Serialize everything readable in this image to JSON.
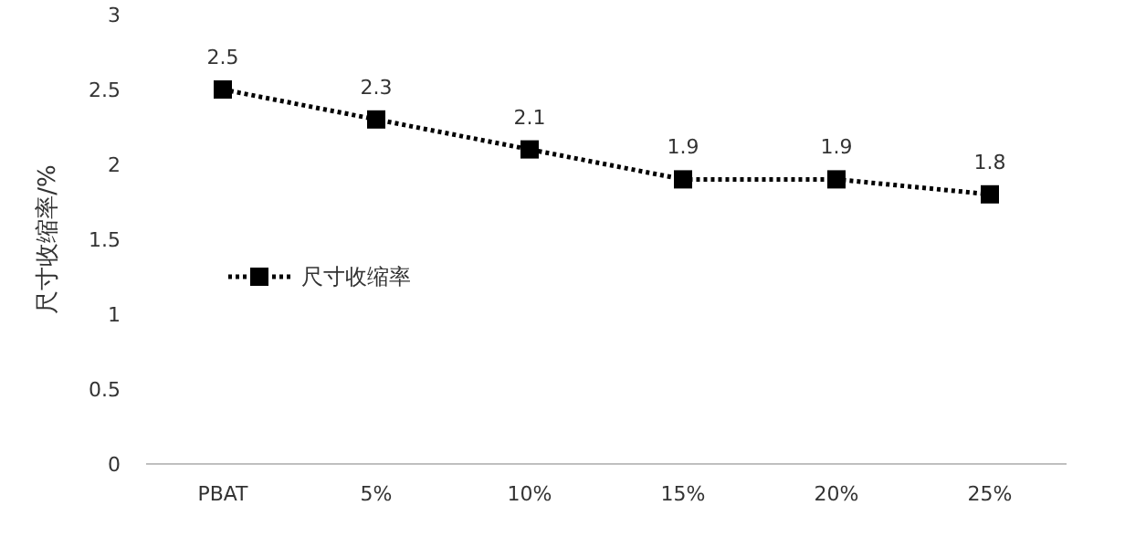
{
  "chart_data": {
    "type": "line",
    "ylabel": "尺寸收缩率/%",
    "categories": [
      "PBAT",
      "5%",
      "10%",
      "15%",
      "20%",
      "25%"
    ],
    "series": [
      {
        "name": "尺寸收缩率",
        "color": "#000000",
        "values": [
          2.5,
          2.3,
          2.1,
          1.9,
          1.9,
          1.8
        ]
      }
    ],
    "ylim": [
      0,
      3
    ],
    "yticks": [
      0,
      0.5,
      1,
      1.5,
      2,
      2.5,
      3
    ],
    "data_labels": true,
    "marker": "square",
    "line_style": "dotted",
    "legend": "left",
    "grid": false
  }
}
